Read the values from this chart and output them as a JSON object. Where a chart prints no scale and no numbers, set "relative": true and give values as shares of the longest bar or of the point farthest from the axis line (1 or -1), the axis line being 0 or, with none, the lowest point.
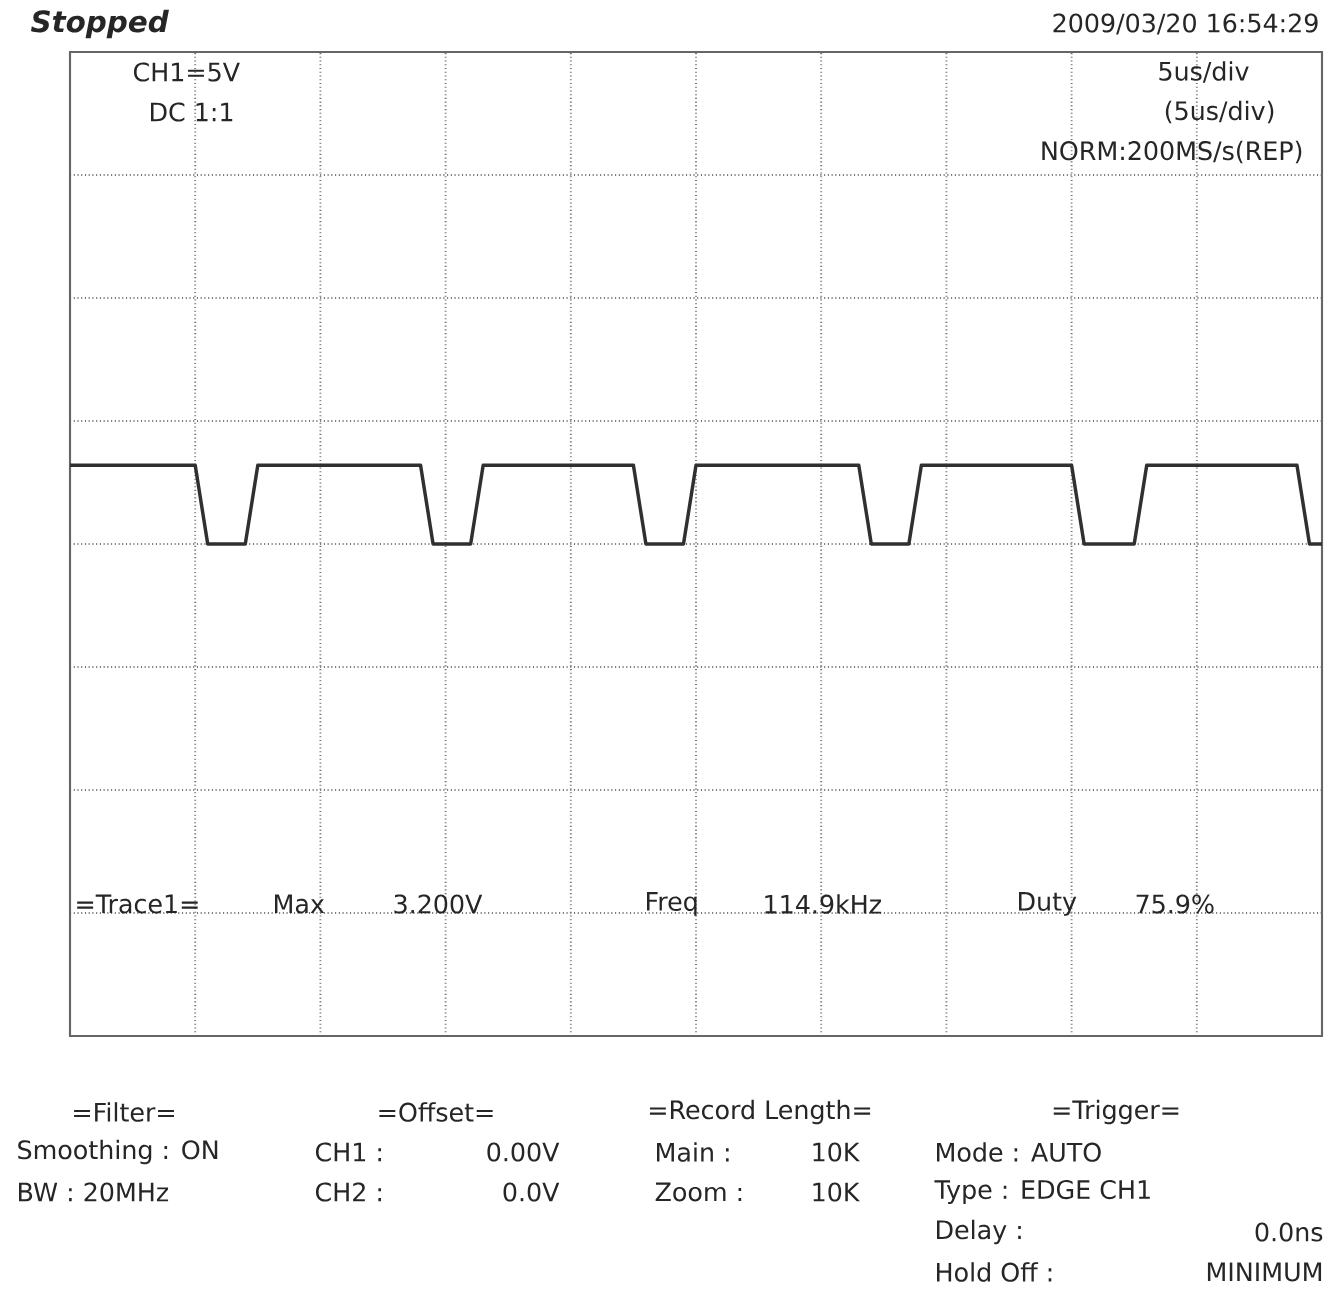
{
  "chart_data": {
    "type": "line",
    "relative": true,
    "color": "#303030",
    "grid": true,
    "categories": [
      null,
      null,
      null,
      null,
      null,
      null,
      null,
      null,
      null,
      null,
      null,
      null,
      null,
      null,
      null,
      null,
      null,
      null,
      null,
      null,
      null,
      null,
      null,
      null,
      null,
      null,
      null,
      null,
      null,
      null,
      null,
      null,
      null,
      null,
      null,
      null,
      null,
      null,
      null,
      null,
      null,
      null,
      null,
      null,
      null,
      null,
      null,
      null,
      null,
      null,
      null,
      null,
      null,
      null,
      null,
      null,
      null,
      null,
      null,
      null,
      null,
      null,
      null,
      null,
      null,
      null,
      null,
      null,
      null,
      null,
      null,
      null,
      null,
      null,
      null,
      null,
      null,
      null,
      null,
      null,
      null,
      null,
      null,
      null,
      null,
      null,
      null,
      null,
      null,
      null,
      null,
      null,
      null,
      null,
      null,
      null,
      null,
      null,
      null,
      null,
      null
    ],
    "values": [
      1,
      1,
      1,
      1,
      1,
      1,
      1,
      1,
      1,
      1,
      1,
      0,
      0,
      0,
      0,
      1,
      1,
      1,
      1,
      1,
      1,
      1,
      1,
      1,
      1,
      1,
      1,
      1,
      1,
      0,
      0,
      0,
      0,
      1,
      1,
      1,
      1,
      1,
      1,
      1,
      1,
      1,
      1,
      1,
      1,
      1,
      0,
      0,
      0,
      0,
      1,
      1,
      1,
      1,
      1,
      1,
      1,
      1,
      1,
      1,
      1,
      1,
      1,
      1,
      0,
      0,
      0,
      0,
      1,
      1,
      1,
      1,
      1,
      1,
      1,
      1,
      1,
      1,
      1,
      1,
      1,
      0,
      0,
      0,
      0,
      0,
      1,
      1,
      1,
      1,
      1,
      1,
      1,
      1,
      1,
      1,
      1,
      1,
      1,
      0,
      0
    ],
    "annotations": [
      "Stopped",
      "2009/03/20  16:54:29",
      "CH1=5V",
      "DC  1:1",
      "5us/div",
      "(5us/div)",
      "NORM:200MS/s(REP)",
      "=Trace1=",
      "Max",
      "3.200V",
      "Freq",
      "114.9kHz",
      "Duty",
      "75.9%",
      "=Filter=",
      "Smoothing : ON",
      "BW : 20MHz",
      "=Offset=",
      "CH1 :",
      "0.00V",
      "CH2 :",
      "0.0V",
      "=Record Length=",
      "Main :",
      "10K",
      "Zoom :",
      "10K",
      "=Trigger=",
      "Mode : AUTO",
      "Type : EDGE CH1",
      "Delay :",
      "0.0ns",
      "Hold Off :",
      "MINIMUM"
    ]
  }
}
